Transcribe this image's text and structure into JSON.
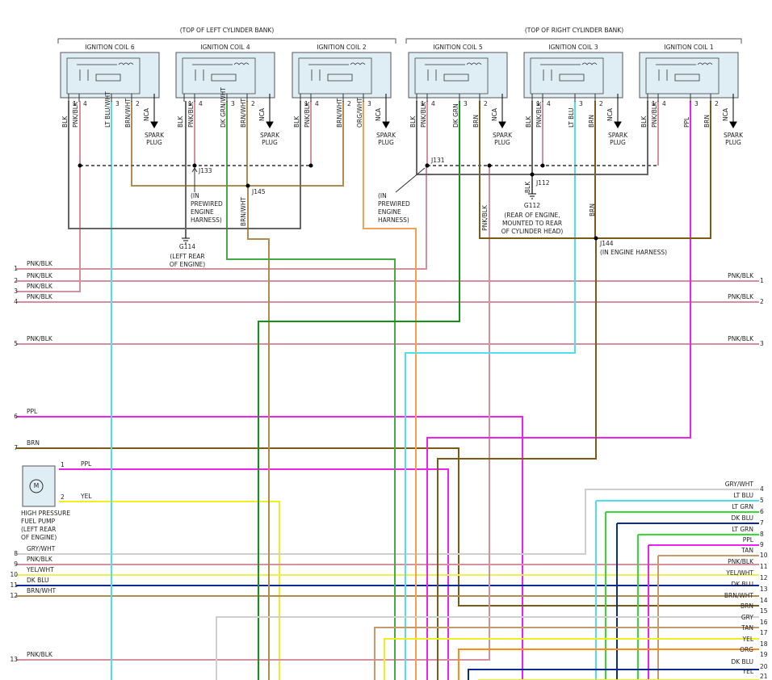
{
  "banks": [
    {
      "title": "(TOP OF LEFT CYLINDER BANK)"
    },
    {
      "title": "(TOP OF RIGHT CYLINDER BANK)"
    }
  ],
  "coils": [
    {
      "title": "IGNITION COIL 6",
      "pins": [
        {
          "wire": "BLK",
          "pin": 1
        },
        {
          "wire": "PNK/BLK",
          "pin": 4
        },
        {
          "wire": "LT BLU/WHT",
          "pin": 3
        },
        {
          "wire": "BRN/WHT",
          "pin": 2
        }
      ],
      "nca": "NCA",
      "spark_plug": [
        "SPARK",
        "PLUG"
      ]
    },
    {
      "title": "IGNITION COIL 4",
      "pins": [
        {
          "wire": "BLK",
          "pin": 1
        },
        {
          "wire": "PNK/BLK",
          "pin": 4
        },
        {
          "wire": "DK GRN/WHT",
          "pin": 3
        },
        {
          "wire": "BRN/WHT",
          "pin": 2
        }
      ],
      "nca": "NCA",
      "spark_plug": [
        "SPARK",
        "PLUG"
      ]
    },
    {
      "title": "IGNITION COIL 2",
      "pins": [
        {
          "wire": "BLK",
          "pin": 1
        },
        {
          "wire": "PNK/BLK",
          "pin": 4
        },
        {
          "wire": "BRN/WHT",
          "pin": 2
        },
        {
          "wire": "ORG/WHT",
          "pin": 3
        }
      ],
      "nca": "NCA",
      "spark_plug": [
        "SPARK",
        "PLUG"
      ]
    },
    {
      "title": "IGNITION COIL 5",
      "pins": [
        {
          "wire": "BLK",
          "pin": 1
        },
        {
          "wire": "PNK/BLK",
          "pin": 4
        },
        {
          "wire": "DK GRN",
          "pin": 3
        },
        {
          "wire": "BRN",
          "pin": 2
        }
      ],
      "nca": "NCA",
      "spark_plug": [
        "SPARK",
        "PLUG"
      ]
    },
    {
      "title": "IGNITION COIL 3",
      "pins": [
        {
          "wire": "BLK",
          "pin": 1
        },
        {
          "wire": "PNK/BLK",
          "pin": 4
        },
        {
          "wire": "LT BLU",
          "pin": 3
        },
        {
          "wire": "BRN",
          "pin": 2
        }
      ],
      "nca": "NCA",
      "spark_plug": [
        "SPARK",
        "PLUG"
      ]
    },
    {
      "title": "IGNITION COIL 1",
      "pins": [
        {
          "wire": "BLK",
          "pin": 1
        },
        {
          "wire": "PNK/BLK",
          "pin": 4
        },
        {
          "wire": "PPL",
          "pin": 3
        },
        {
          "wire": "BRN",
          "pin": 2
        }
      ],
      "nca": "NCA",
      "spark_plug": [
        "SPARK",
        "PLUG"
      ]
    }
  ],
  "splices": [
    {
      "label": "J133",
      "note": [
        "(IN",
        "PREWIRED",
        "ENGINE",
        "HARNESS)"
      ]
    },
    {
      "label": "J145"
    },
    {
      "label": "J131",
      "note": [
        "(IN",
        "PREWIRED",
        "ENGINE",
        "HARNESS)"
      ]
    },
    {
      "label": "J112"
    },
    {
      "label": "J144",
      "note": [
        "(IN ENGINE HARNESS)"
      ]
    }
  ],
  "grounds": [
    {
      "label": "G114",
      "note": [
        "(LEFT REAR",
        "OF ENGINE)"
      ]
    },
    {
      "label": "G112",
      "note": [
        "(REAR OF ENGINE,",
        "MOUNTED TO REAR",
        "OF CYLINDER HEAD)"
      ]
    }
  ],
  "wire_labels": [
    "BRN/WHT",
    "PNK/BLK",
    "BLK",
    "BRN"
  ],
  "left_connector": [
    {
      "pin": 1,
      "wire": "PNK/BLK"
    },
    {
      "pin": 2,
      "wire": "PNK/BLK"
    },
    {
      "pin": 3,
      "wire": "PNK/BLK"
    },
    {
      "pin": 4,
      "wire": "PNK/BLK"
    },
    {
      "pin": 5,
      "wire": "PNK/BLK"
    },
    {
      "pin": 6,
      "wire": "PPL"
    },
    {
      "pin": 7,
      "wire": "BRN"
    },
    {
      "pin": 8,
      "wire": "GRY/WHT"
    },
    {
      "pin": 9,
      "wire": "PNK/BLK"
    },
    {
      "pin": 10,
      "wire": "YEL/WHT"
    },
    {
      "pin": 11,
      "wire": "DK BLU"
    },
    {
      "pin": 12,
      "wire": "BRN/WHT"
    },
    {
      "pin": 13,
      "wire": "PNK/BLK"
    }
  ],
  "right_connector": [
    {
      "pin": 1,
      "wire": "PNK/BLK"
    },
    {
      "pin": 2,
      "wire": "PNK/BLK"
    },
    {
      "pin": 3,
      "wire": "PNK/BLK"
    },
    {
      "pin": 4,
      "wire": "GRY/WHT"
    },
    {
      "pin": 5,
      "wire": "LT BLU"
    },
    {
      "pin": 6,
      "wire": "LT GRN"
    },
    {
      "pin": 7,
      "wire": "DK BLU"
    },
    {
      "pin": 8,
      "wire": "LT GRN"
    },
    {
      "pin": 9,
      "wire": "PPL"
    },
    {
      "pin": 10,
      "wire": "TAN"
    },
    {
      "pin": 11,
      "wire": "PNK/BLK"
    },
    {
      "pin": 12,
      "wire": "YEL/WHT"
    },
    {
      "pin": 13,
      "wire": "DK BLU"
    },
    {
      "pin": 14,
      "wire": "BRN/WHT"
    },
    {
      "pin": 15,
      "wire": "BRN"
    },
    {
      "pin": 16,
      "wire": "GRY"
    },
    {
      "pin": 17,
      "wire": "TAN"
    },
    {
      "pin": 18,
      "wire": "YEL"
    },
    {
      "pin": 19,
      "wire": "ORG"
    },
    {
      "pin": 20,
      "wire": "DK BLU"
    },
    {
      "pin": 21,
      "wire": "YEL"
    }
  ],
  "fuel_pump": {
    "motor": "M",
    "label": [
      "HIGH PRESSURE",
      "FUEL PUMP",
      "(LEFT REAR",
      "OF ENGINE)"
    ],
    "pins": [
      {
        "pin": 1,
        "wire": "PPL"
      },
      {
        "pin": 2,
        "wire": "YEL"
      }
    ]
  }
}
